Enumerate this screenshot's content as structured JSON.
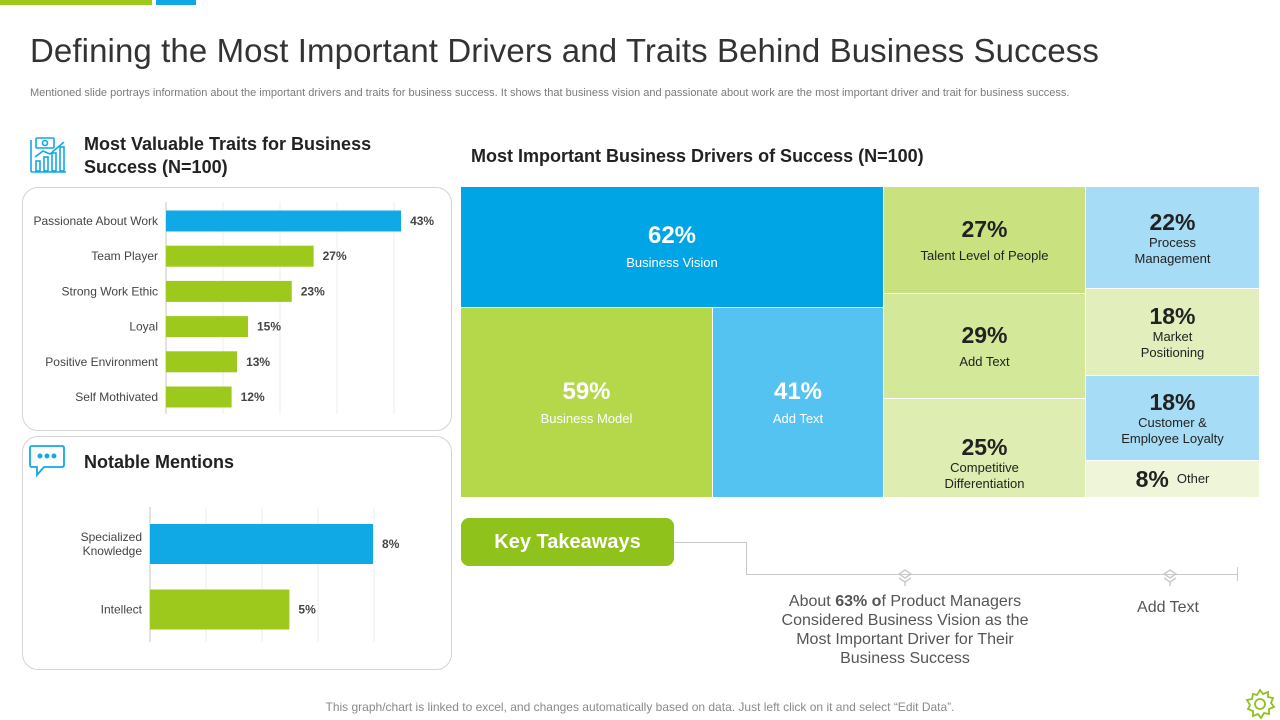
{
  "title": "Defining the Most Important Drivers and Traits Behind Business Success",
  "subtitle": "Mentioned slide portrays information about the important drivers and traits for  business success. It shows that business vision and passionate about work are the most important driver and trait for business success.",
  "colors": {
    "green": "#9cc91c",
    "blue": "#10a9e6"
  },
  "traits": {
    "heading": "Most Valuable Traits for Business Success (N=100)",
    "icon": "money-chart-icon"
  },
  "mentions": {
    "heading": "Notable Mentions",
    "icon": "speech-bubble-icon"
  },
  "drivers": {
    "heading": "Most Important Business Drivers of Success (N=100)"
  },
  "chart_data": [
    {
      "type": "bar",
      "orientation": "horizontal",
      "title": "Most Valuable Traits for Business Success (N=100)",
      "categories": [
        "Passionate About Work",
        "Team Player",
        "Strong Work Ethic",
        "Loyal",
        "Positive Environment",
        "Self Mothivated"
      ],
      "values": [
        43,
        27,
        23,
        15,
        13,
        12
      ],
      "value_labels": [
        "43%",
        "27%",
        "23%",
        "15%",
        "13%",
        "12%"
      ],
      "bar_colors": [
        "#10a9e6",
        "#9cc91c",
        "#9cc91c",
        "#9cc91c",
        "#9cc91c",
        "#9cc91c"
      ],
      "xlim": [
        0,
        45
      ],
      "unit": "%"
    },
    {
      "type": "bar",
      "orientation": "horizontal",
      "title": "Notable Mentions",
      "categories": [
        "Specialized Knowledge",
        "Intellect"
      ],
      "values": [
        8,
        5
      ],
      "value_labels": [
        "8%",
        "5%"
      ],
      "bar_colors": [
        "#10a9e6",
        "#9cc91c"
      ],
      "xlim": [
        0,
        8.5
      ],
      "unit": "%"
    },
    {
      "type": "treemap",
      "title": "Most Important Business Drivers of Success (N=100)",
      "cells": [
        {
          "value": "62%",
          "label": "Business Vision",
          "color": "#00a5e6",
          "text_color": "#ffffff"
        },
        {
          "value": "59%",
          "label": "Business Model",
          "color": "#b4d84a",
          "text_color": "#ffffff"
        },
        {
          "value": "41%",
          "label": "Add Text",
          "color": "#55c3f1",
          "text_color": "#ffffff"
        },
        {
          "value": "27%",
          "label": "Talent Level  of People",
          "color": "#c9e27f",
          "text_color": "#222222"
        },
        {
          "value": "29%",
          "label": "Add Text",
          "color": "#d4e89a",
          "text_color": "#222222"
        },
        {
          "value": "25%",
          "label": "Competitive Differentiation",
          "color": "#deedb1",
          "text_color": "#222222"
        },
        {
          "value": "22%",
          "label": "Process Management",
          "color": "#a6dcf5",
          "text_color": "#222222"
        },
        {
          "value": "18%",
          "label": "Market Positioning",
          "color": "#e2efbd",
          "text_color": "#222222"
        },
        {
          "value": "18%",
          "label": "Customer & Employee Loyalty",
          "color": "#a6dcf5",
          "text_color": "#222222"
        },
        {
          "value": "8%",
          "label": "Other",
          "color": "#eef5d8",
          "text_color": "#222222"
        }
      ]
    }
  ],
  "key_takeaways": {
    "button_label": "Key Takeaways",
    "item1": {
      "prefix": "About ",
      "bold1": "63%",
      "mid": " ",
      "bold2": "o",
      "rest": "f Product Managers Considered Business Vision as the Most Important  Driver for Their Business Success"
    },
    "item2": {
      "text": "Add Text"
    }
  },
  "footnote": "This graph/chart is linked to excel, and changes automatically based on data. Just left click on it and select “Edit Data”."
}
